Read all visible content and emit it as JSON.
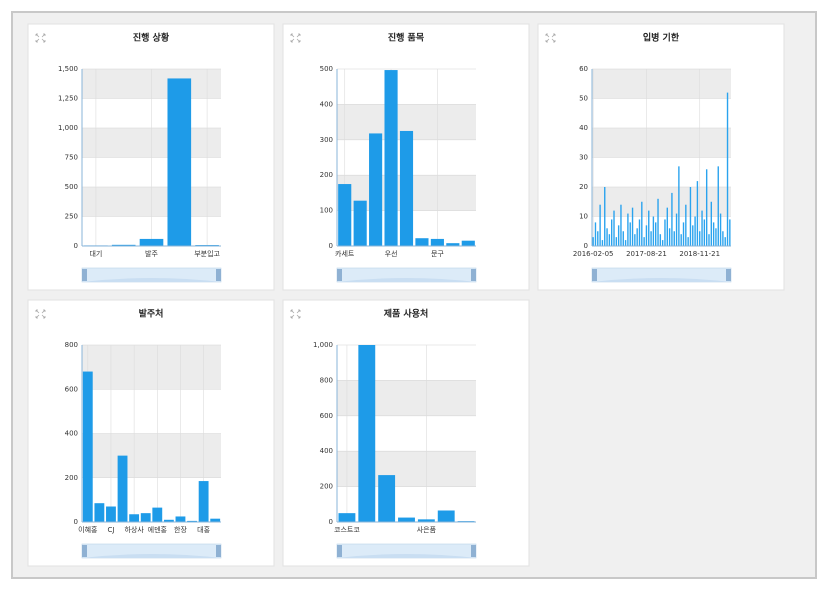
{
  "chart_data": [
    {
      "type": "bar",
      "title": "진행 상황",
      "categories": [
        "대기",
        null,
        "발주",
        null,
        "부분입고"
      ],
      "values": [
        5,
        10,
        60,
        1420,
        8
      ],
      "color": "#1e9be8",
      "ylim": [
        0,
        1500
      ],
      "yticks": [
        0,
        250,
        500,
        750,
        {
          "value": 1000,
          "label": "1,000"
        },
        {
          "value": 1250,
          "label": "1,250"
        },
        {
          "value": 1500,
          "label": "1,500"
        }
      ],
      "grid": true
    },
    {
      "type": "bar",
      "title": "진행 품목",
      "categories": [
        "카세트",
        null,
        null,
        "우선",
        null,
        null,
        "문구",
        null,
        null
      ],
      "values": [
        175,
        128,
        318,
        497,
        325,
        22,
        20,
        8,
        15
      ],
      "color": "#1e9be8",
      "ylim": [
        0,
        500
      ],
      "yticks": [
        0,
        100,
        200,
        300,
        400,
        500
      ],
      "grid": true
    },
    {
      "type": "bar",
      "title": "입병 기한",
      "categories": [
        "2016-02-05",
        null,
        null,
        null,
        null,
        null,
        null,
        null,
        null,
        null,
        null,
        null,
        null,
        null,
        null,
        null,
        null,
        null,
        null,
        null,
        null,
        null,
        null,
        "2017-08-21",
        null,
        null,
        null,
        null,
        null,
        null,
        null,
        null,
        null,
        null,
        null,
        null,
        null,
        null,
        null,
        null,
        null,
        null,
        null,
        null,
        null,
        null,
        "2018-11-21",
        null,
        null,
        null,
        null,
        null,
        null,
        null,
        null,
        null,
        null,
        null,
        null,
        null
      ],
      "values": [
        3,
        8,
        5,
        14,
        2,
        20,
        6,
        4,
        9,
        12,
        3,
        7,
        14,
        5,
        2,
        11,
        8,
        13,
        4,
        6,
        9,
        15,
        3,
        7,
        12,
        5,
        10,
        8,
        16,
        4,
        2,
        9,
        13,
        6,
        18,
        5,
        11,
        27,
        4,
        8,
        14,
        3,
        20,
        7,
        10,
        22,
        5,
        12,
        9,
        26,
        4,
        15,
        8,
        6,
        27,
        11,
        5,
        3,
        52,
        9
      ],
      "color": "#2aa3ee",
      "ylim": [
        0,
        60
      ],
      "yticks": [
        0,
        10,
        20,
        30,
        40,
        50,
        60
      ],
      "grid": true
    },
    {
      "type": "bar",
      "title": "발주처",
      "categories": [
        "이혜홍",
        null,
        "CJ",
        null,
        "하상사",
        null,
        "에덴홍",
        null,
        "한장",
        null,
        "대홍",
        null
      ],
      "values": [
        680,
        85,
        70,
        300,
        35,
        40,
        65,
        10,
        25,
        5,
        185,
        15
      ],
      "color": "#1e9be8",
      "ylim": [
        0,
        800
      ],
      "yticks": [
        0,
        200,
        400,
        600,
        800
      ],
      "grid": true
    },
    {
      "type": "bar",
      "title": "제품 사용처",
      "categories": [
        "코스트코",
        null,
        null,
        null,
        "사은품",
        null,
        null
      ],
      "values": [
        50,
        1000,
        265,
        25,
        15,
        65,
        5
      ],
      "color": "#1e9be8",
      "ylim": [
        0,
        1000
      ],
      "yticks": [
        0,
        200,
        400,
        600,
        800,
        {
          "value": 1000,
          "label": "1,000"
        }
      ],
      "grid": true
    }
  ]
}
